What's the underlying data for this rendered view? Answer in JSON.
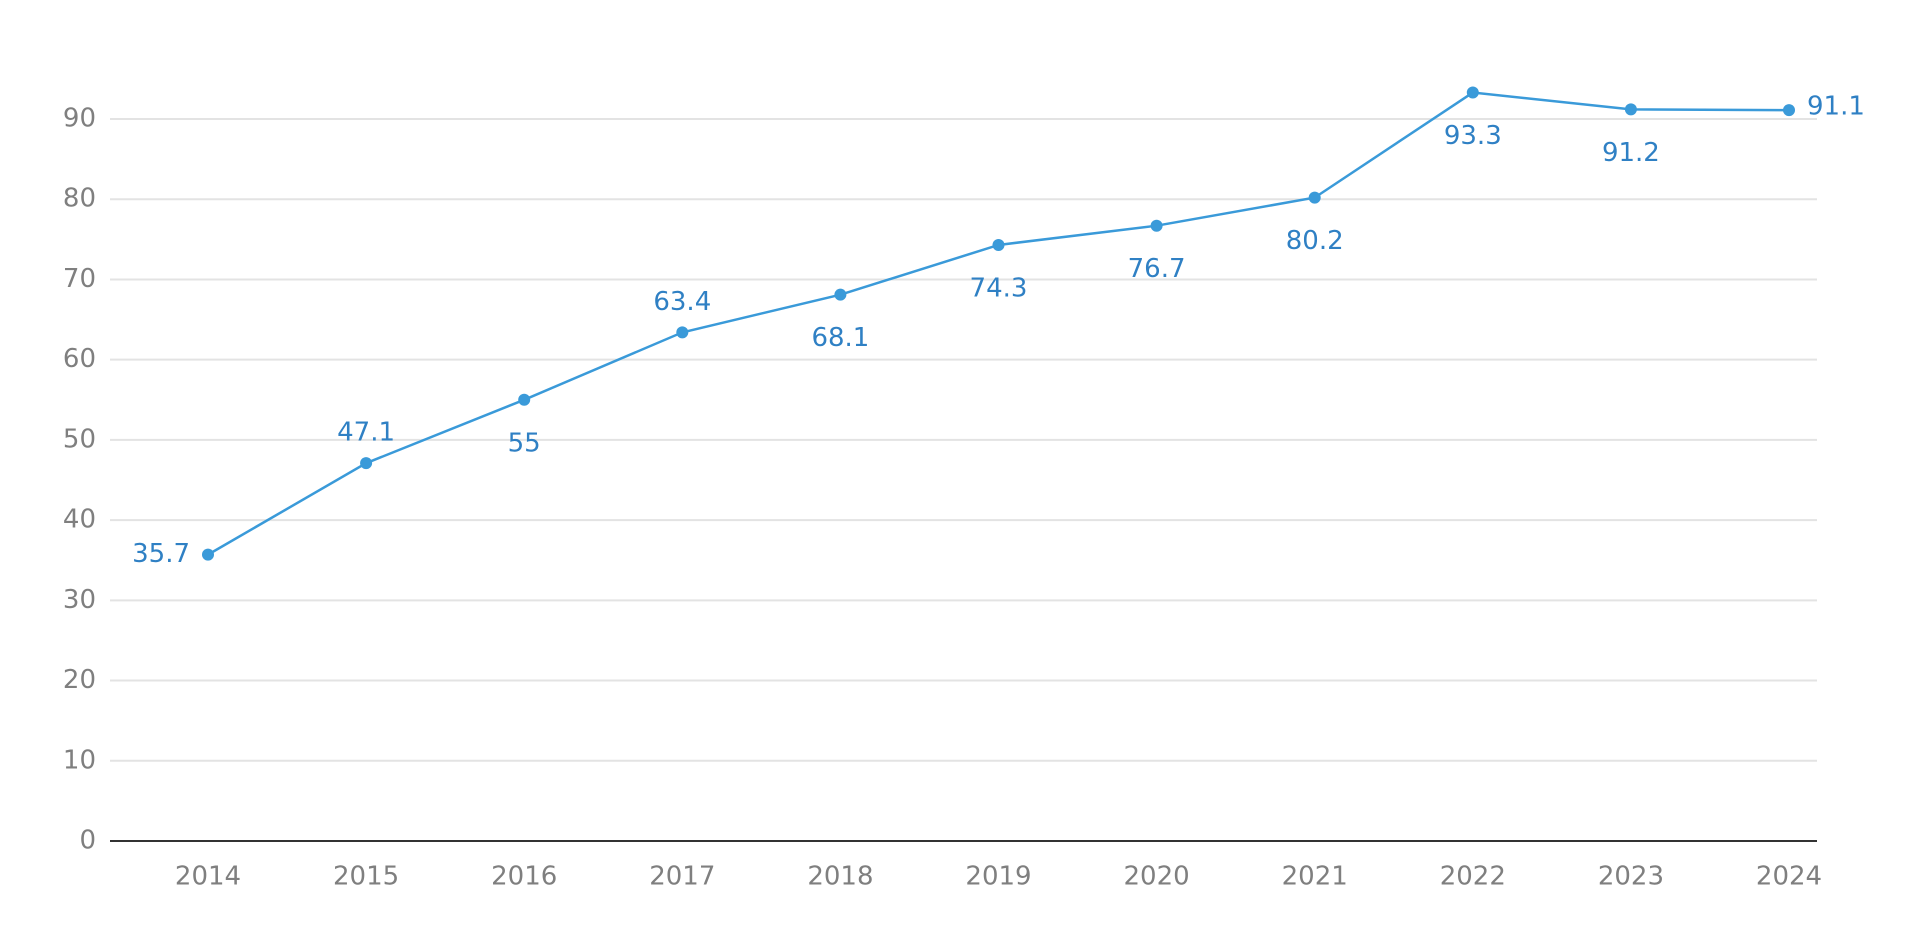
{
  "chart_data": {
    "type": "line",
    "categories": [
      "2014",
      "2015",
      "2016",
      "2017",
      "2018",
      "2019",
      "2020",
      "2021",
      "2022",
      "2023",
      "2024"
    ],
    "series": [
      {
        "color": "#3a9ad9",
        "values": [
          35.7,
          47.1,
          55,
          63.4,
          68.1,
          74.3,
          76.7,
          80.2,
          93.3,
          91.2,
          91.1
        ]
      }
    ],
    "ylim": [
      0,
      90
    ],
    "yticks": [
      0,
      10,
      20,
      30,
      40,
      50,
      60,
      70,
      80,
      90
    ],
    "grid": true
  }
}
